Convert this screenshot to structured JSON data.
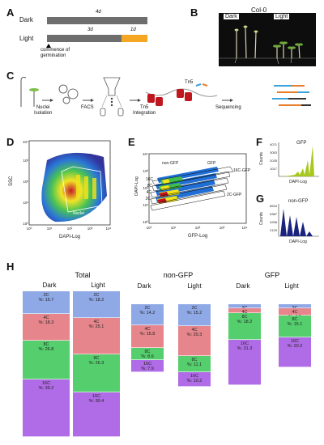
{
  "panel_letters": {
    "A": "A",
    "B": "B",
    "C": "C",
    "D": "D",
    "E": "E",
    "F": "F",
    "G": "G",
    "H": "H"
  },
  "panelA": {
    "row_dark": "Dark",
    "row_light": "Light",
    "dark_duration": "4d",
    "light_dark_duration": "3d",
    "light_light_duration": "1d",
    "germination_label": "commence of\ngermination",
    "colors": {
      "dark": "#6e6e6e",
      "light": "#f5a623"
    }
  },
  "panelB": {
    "title": "Col-0",
    "dark": "Dark",
    "light": "Light"
  },
  "panelC": {
    "steps": [
      "Nuclei\nIsolation",
      "FACS",
      "Tn5\nIntegration",
      "Sequencing"
    ],
    "tn5": "Tn5"
  },
  "panelD": {
    "ylabel": "SSC",
    "xlabel": "DAPI-Log",
    "gate": "Nuclei",
    "xticks": [
      "10⁰",
      "10¹",
      "10²",
      "10³",
      "10⁴"
    ],
    "yticks": [
      "10⁰",
      "10¹",
      "10²",
      "10³",
      "10⁴"
    ]
  },
  "panelE": {
    "ylabel": "DAPI-Log",
    "xlabel": "GFP-Log",
    "gates_left": [
      "16C",
      "8C",
      "4C",
      "2C"
    ],
    "non_gfp": "non-GFP",
    "gfp": "GFP",
    "gfp_16c": "16C-GFP",
    "gfp_2c": "2C-GFP",
    "xticks": [
      "10⁰",
      "10¹",
      "10²",
      "10³",
      "10⁴"
    ],
    "yticks": [
      "10⁰",
      "10¹",
      "10²",
      "10³",
      "10⁴"
    ]
  },
  "panelF": {
    "title": "GFP",
    "ylabel": "Counts",
    "xlabel": "DAPI-Log",
    "yticks": [
      "4071",
      "3053",
      "2035",
      "1017"
    ],
    "color": "#a8c81e"
  },
  "panelG": {
    "title": "non-GFP",
    "ylabel": "Counts",
    "xlabel": "DAPI-Log",
    "yticks": [
      "8516",
      "6387",
      "4258",
      "2129"
    ],
    "color": "#1a237e"
  },
  "panelH": {
    "colors": {
      "2C": "#8fa8e6",
      "4C": "#e6868c",
      "8C": "#55cf6e",
      "16C": "#b06be6"
    },
    "groups": [
      {
        "title": "Total",
        "columns": [
          {
            "label": "Dark",
            "segments": [
              {
                "ploidy": "2C",
                "pct": "15.7",
                "value": 15.7
              },
              {
                "ploidy": "4C",
                "pct": "18.3",
                "value": 18.3
              },
              {
                "ploidy": "8C",
                "pct": "26.8",
                "value": 26.8
              },
              {
                "ploidy": "16C",
                "pct": "39.2",
                "value": 39.2
              }
            ]
          },
          {
            "label": "Light",
            "segments": [
              {
                "ploidy": "2C",
                "pct": "18.2",
                "value": 18.2
              },
              {
                "ploidy": "4C",
                "pct": "25.1",
                "value": 25.1
              },
              {
                "ploidy": "8C",
                "pct": "26.3",
                "value": 26.3
              },
              {
                "ploidy": "16C",
                "pct": "30.4",
                "value": 30.4
              }
            ]
          }
        ]
      },
      {
        "title": "non-GFP",
        "columns": [
          {
            "label": "Dark",
            "segments": [
              {
                "ploidy": "2C",
                "pct": "14.2",
                "value": 14.2
              },
              {
                "ploidy": "4C",
                "pct": "15.8",
                "value": 15.8
              },
              {
                "ploidy": "8C",
                "pct": "8.6",
                "value": 8.6
              },
              {
                "ploidy": "16C",
                "pct": "7.9",
                "value": 7.9
              }
            ]
          },
          {
            "label": "Light",
            "segments": [
              {
                "ploidy": "2C",
                "pct": "15.2",
                "value": 15.2
              },
              {
                "ploidy": "4C",
                "pct": "20.3",
                "value": 20.3
              },
              {
                "ploidy": "8C",
                "pct": "11.1",
                "value": 11.1
              },
              {
                "ploidy": "16C",
                "pct": "10.2",
                "value": 10.2
              }
            ]
          }
        ]
      },
      {
        "title": "GFP",
        "columns": [
          {
            "label": "Dark",
            "segments": [
              {
                "ploidy": "2C",
                "pct": "",
                "value": 2.8
              },
              {
                "ploidy": "4C",
                "pct": "",
                "value": 3.2
              },
              {
                "ploidy": "8C",
                "pct": "18.2",
                "value": 18.2
              },
              {
                "ploidy": "16C",
                "pct": "31.3",
                "value": 31.3
              }
            ]
          },
          {
            "label": "Light",
            "segments": [
              {
                "ploidy": "2C",
                "pct": "3.0",
                "value": 3.0
              },
              {
                "ploidy": "4C",
                "pct": "4.8",
                "value": 4.8
              },
              {
                "ploidy": "8C",
                "pct": "15.1",
                "value": 15.1
              },
              {
                "ploidy": "16C",
                "pct": "20.2",
                "value": 20.2
              }
            ]
          }
        ]
      }
    ]
  }
}
